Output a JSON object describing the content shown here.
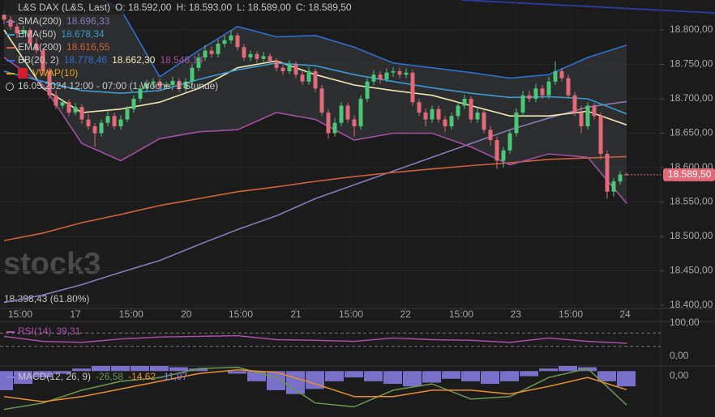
{
  "chart_data": {
    "type": "candlestick",
    "title": "L&S DAX (L&S, Last)",
    "ohlc_labels": [
      "O: 18.592,00",
      "H: 18.593,00",
      "L: 18.589,00",
      "C: 18.589,50"
    ],
    "period": "16.05.2024 12:00 - 07:00  (1 Woche, 1 Stunde)",
    "watermark": "stock3",
    "annotation": "18.398,43 (61.80%)",
    "up_color": "#4cc777",
    "down_color": "#e06a78",
    "grid": true,
    "candles": [
      [
        18822,
        18830,
        18808,
        18815
      ],
      [
        18815,
        18820,
        18800,
        18805
      ],
      [
        18805,
        18810,
        18788,
        18795
      ],
      [
        18795,
        18806,
        18790,
        18800
      ],
      [
        18800,
        18803,
        18775,
        18780
      ],
      [
        18780,
        18788,
        18765,
        18770
      ],
      [
        18770,
        18774,
        18735,
        18740
      ],
      [
        18740,
        18745,
        18700,
        18705
      ],
      [
        18705,
        18712,
        18685,
        18690
      ],
      [
        18690,
        18700,
        18685,
        18695
      ],
      [
        18695,
        18699,
        18675,
        18680
      ],
      [
        18680,
        18694,
        18676,
        18688
      ],
      [
        18688,
        18692,
        18664,
        18670
      ],
      [
        18670,
        18678,
        18655,
        18660
      ],
      [
        18660,
        18665,
        18630,
        18650
      ],
      [
        18650,
        18670,
        18645,
        18665
      ],
      [
        18665,
        18682,
        18660,
        18675
      ],
      [
        18675,
        18680,
        18655,
        18660
      ],
      [
        18660,
        18676,
        18655,
        18670
      ],
      [
        18670,
        18690,
        18666,
        18685
      ],
      [
        18685,
        18705,
        18680,
        18700
      ],
      [
        18700,
        18720,
        18695,
        18715
      ],
      [
        18715,
        18728,
        18710,
        18722
      ],
      [
        18722,
        18730,
        18716,
        18725
      ],
      [
        18725,
        18729,
        18712,
        18718
      ],
      [
        18718,
        18725,
        18714,
        18720
      ],
      [
        18720,
        18732,
        18716,
        18726
      ],
      [
        18726,
        18730,
        18710,
        18715
      ],
      [
        18715,
        18730,
        18710,
        18725
      ],
      [
        18725,
        18750,
        18720,
        18745
      ],
      [
        18745,
        18766,
        18740,
        18760
      ],
      [
        18760,
        18778,
        18755,
        18770
      ],
      [
        18770,
        18776,
        18760,
        18765
      ],
      [
        18765,
        18786,
        18760,
        18780
      ],
      [
        18780,
        18792,
        18775,
        18785
      ],
      [
        18785,
        18800,
        18780,
        18792
      ],
      [
        18792,
        18796,
        18770,
        18775
      ],
      [
        18775,
        18780,
        18755,
        18760
      ],
      [
        18760,
        18770,
        18755,
        18765
      ],
      [
        18765,
        18769,
        18752,
        18758
      ],
      [
        18758,
        18768,
        18754,
        18762
      ],
      [
        18762,
        18766,
        18750,
        18755
      ],
      [
        18755,
        18759,
        18740,
        18745
      ],
      [
        18745,
        18750,
        18735,
        18740
      ],
      [
        18740,
        18756,
        18736,
        18750
      ],
      [
        18750,
        18754,
        18730,
        18735
      ],
      [
        18735,
        18740,
        18720,
        18725
      ],
      [
        18725,
        18746,
        18720,
        18740
      ],
      [
        18740,
        18744,
        18710,
        18715
      ],
      [
        18715,
        18720,
        18675,
        18680
      ],
      [
        18680,
        18685,
        18642,
        18650
      ],
      [
        18650,
        18672,
        18645,
        18665
      ],
      [
        18665,
        18695,
        18660,
        18690
      ],
      [
        18690,
        18694,
        18665,
        18670
      ],
      [
        18670,
        18676,
        18645,
        18660
      ],
      [
        18660,
        18705,
        18655,
        18700
      ],
      [
        18700,
        18730,
        18695,
        18725
      ],
      [
        18725,
        18742,
        18720,
        18735
      ],
      [
        18735,
        18740,
        18722,
        18728
      ],
      [
        18728,
        18744,
        18724,
        18738
      ],
      [
        18738,
        18746,
        18732,
        18740
      ],
      [
        18740,
        18745,
        18730,
        18735
      ],
      [
        18735,
        18744,
        18730,
        18738
      ],
      [
        18738,
        18742,
        18690,
        18695
      ],
      [
        18695,
        18700,
        18675,
        18680
      ],
      [
        18680,
        18686,
        18660,
        18670
      ],
      [
        18670,
        18690,
        18665,
        18685
      ],
      [
        18685,
        18690,
        18665,
        18670
      ],
      [
        18670,
        18675,
        18652,
        18660
      ],
      [
        18660,
        18680,
        18655,
        18675
      ],
      [
        18675,
        18696,
        18670,
        18690
      ],
      [
        18690,
        18706,
        18685,
        18700
      ],
      [
        18700,
        18704,
        18665,
        18670
      ],
      [
        18670,
        18686,
        18665,
        18680
      ],
      [
        18680,
        18684,
        18650,
        18655
      ],
      [
        18655,
        18660,
        18632,
        18640
      ],
      [
        18640,
        18645,
        18598,
        18610
      ],
      [
        18610,
        18630,
        18600,
        18625
      ],
      [
        18625,
        18655,
        18620,
        18650
      ],
      [
        18650,
        18686,
        18645,
        18680
      ],
      [
        18680,
        18712,
        18675,
        18705
      ],
      [
        18705,
        18712,
        18695,
        18700
      ],
      [
        18700,
        18722,
        18695,
        18715
      ],
      [
        18715,
        18720,
        18700,
        18705
      ],
      [
        18705,
        18732,
        18700,
        18725
      ],
      [
        18725,
        18755,
        18720,
        18740
      ],
      [
        18740,
        18745,
        18725,
        18730
      ],
      [
        18730,
        18735,
        18700,
        18705
      ],
      [
        18705,
        18710,
        18675,
        18680
      ],
      [
        18680,
        18690,
        18650,
        18660
      ],
      [
        18660,
        18695,
        18655,
        18690
      ],
      [
        18690,
        18694,
        18670,
        18675
      ],
      [
        18675,
        18680,
        18612,
        18620
      ],
      [
        18620,
        18625,
        18555,
        18565
      ],
      [
        18565,
        18585,
        18558,
        18580
      ],
      [
        18580,
        18595,
        18575,
        18590
      ],
      [
        18590,
        18593,
        18589,
        18589.5
      ]
    ],
    "xlim": [
      -0.625,
      101.25
    ],
    "xticks": [
      {
        "value": 2.5,
        "label": "15:00"
      },
      {
        "value": 11,
        "label": "17"
      },
      {
        "value": 19.6,
        "label": "15:00"
      },
      {
        "value": 28.1,
        "label": "20"
      },
      {
        "value": 36.5,
        "label": "15:00"
      },
      {
        "value": 45,
        "label": "21"
      },
      {
        "value": 53.5,
        "label": "15:00"
      },
      {
        "value": 61.9,
        "label": "22"
      },
      {
        "value": 70.5,
        "label": "15:00"
      },
      {
        "value": 78.9,
        "label": "23"
      },
      {
        "value": 87.4,
        "label": "15:00"
      },
      {
        "value": 95.75,
        "label": "24"
      }
    ],
    "ylim": [
      18396.5,
      18843.5
    ],
    "yticks": [
      {
        "value": 18400,
        "label": "18.400,00"
      },
      {
        "value": 18450,
        "label": "18.450,00"
      },
      {
        "value": 18500,
        "label": "18.500,00"
      },
      {
        "value": 18550,
        "label": "18.550,00"
      },
      {
        "value": 18600,
        "label": "18.600,00"
      },
      {
        "value": 18650,
        "label": "18.650,00"
      },
      {
        "value": 18700,
        "label": "18.700,00"
      },
      {
        "value": 18750,
        "label": "18.750,00"
      },
      {
        "value": 18800,
        "label": "18.800,00"
      }
    ],
    "last_price": {
      "value": 18589.5,
      "label": "18.589,50"
    },
    "overlay_x": [
      0,
      6,
      12,
      18,
      24,
      30,
      36,
      42,
      48,
      54,
      60,
      66,
      72,
      78,
      84,
      90,
      96
    ],
    "overlays": [
      {
        "name": "SMA(200)",
        "label": "18.696,33",
        "color": "#8a78b8",
        "values": [
          18404,
          18415,
          18430,
          18448,
          18465,
          18488,
          18510,
          18530,
          18555,
          18575,
          18595,
          18615,
          18635,
          18655,
          18672,
          18688,
          18696
        ]
      },
      {
        "name": "EMA(50)",
        "label": "18.678,34",
        "color": "#3a9ad0",
        "values": [
          18740,
          18725,
          18712,
          18708,
          18712,
          18728,
          18742,
          18752,
          18748,
          18735,
          18725,
          18716,
          18708,
          18702,
          18703,
          18700,
          18678
        ]
      },
      {
        "name": "EMA(200)",
        "label": "18.616,55",
        "color": "#d0603a",
        "values": [
          18494,
          18505,
          18520,
          18532,
          18545,
          18555,
          18565,
          18572,
          18580,
          18587,
          18593,
          18598,
          18603,
          18607,
          18612,
          18614,
          18616
        ]
      }
    ],
    "bands": {
      "name": "BB(20, 2)",
      "labels": [
        "18.778,46",
        "18.662,30",
        "18.548,14"
      ],
      "colors": [
        "#2f6fd0",
        "#f0e6b0",
        "#a050a0"
      ],
      "fill": "#3a3d40",
      "upper": [
        18870,
        18865,
        18860,
        18830,
        18732,
        18770,
        18805,
        18790,
        18792,
        18775,
        18752,
        18745,
        18738,
        18730,
        18735,
        18760,
        18778
      ],
      "middle": [
        18800,
        18715,
        18680,
        18685,
        18695,
        18715,
        18745,
        18755,
        18735,
        18720,
        18712,
        18705,
        18690,
        18675,
        18675,
        18682,
        18662
      ],
      "lower": [
        18760,
        18720,
        18635,
        18610,
        18642,
        18652,
        18655,
        18680,
        18670,
        18640,
        18650,
        18650,
        18630,
        18604,
        18620,
        18615,
        18548
      ]
    },
    "vwap": {
      "name": "VWAP(10)",
      "color": "#e8a020"
    },
    "rsi": {
      "name": "RSI(14)",
      "label": "39,31",
      "color": "#b050b0",
      "values": [
        60,
        45,
        42,
        52,
        58,
        60,
        62,
        50,
        48,
        45,
        55,
        50,
        48,
        42,
        55,
        45,
        39.31
      ],
      "ylim": [
        0,
        100
      ],
      "yticks": [
        {
          "value": 100,
          "label": "100,00"
        },
        {
          "value": 0,
          "label": "0,00"
        }
      ],
      "levels": [
        70,
        30
      ]
    },
    "macd": {
      "name": "MACD(12, 26, 9)",
      "labels": [
        "-26,58",
        "-14,62",
        "-11,97"
      ],
      "colors": [
        "#6a9a50",
        "#e89030",
        "#8a80e8"
      ],
      "macd": [
        -30,
        -25,
        -15,
        -8,
        -5,
        2,
        3,
        -5,
        -25,
        -28,
        -15,
        -10,
        -22,
        -20,
        -5,
        2,
        -26.58
      ],
      "signal": [
        -20,
        -24,
        -20,
        -14,
        -8,
        -2,
        1,
        -1,
        -10,
        -20,
        -20,
        -15,
        -15,
        -18,
        -12,
        -5,
        -14.62
      ],
      "hist_x": [
        0,
        3,
        6,
        9,
        12,
        15,
        18,
        21,
        24,
        27,
        30,
        33,
        36,
        39,
        42,
        45,
        48,
        51,
        54,
        57,
        60,
        63,
        66,
        69,
        72,
        75,
        78,
        81,
        84,
        87,
        90,
        93,
        96
      ],
      "hist": [
        -15,
        -10,
        -5,
        -2,
        2,
        5,
        6,
        6,
        5,
        3,
        2,
        0,
        -2,
        -8,
        -15,
        -18,
        -14,
        -8,
        -5,
        -8,
        -10,
        -12,
        -9,
        -6,
        -8,
        -10,
        -8,
        -4,
        2,
        4,
        3,
        -8,
        -11.97
      ],
      "ylim": [
        -36,
        4
      ],
      "yticks": [
        {
          "value": 0,
          "label": "0,00"
        }
      ]
    }
  }
}
